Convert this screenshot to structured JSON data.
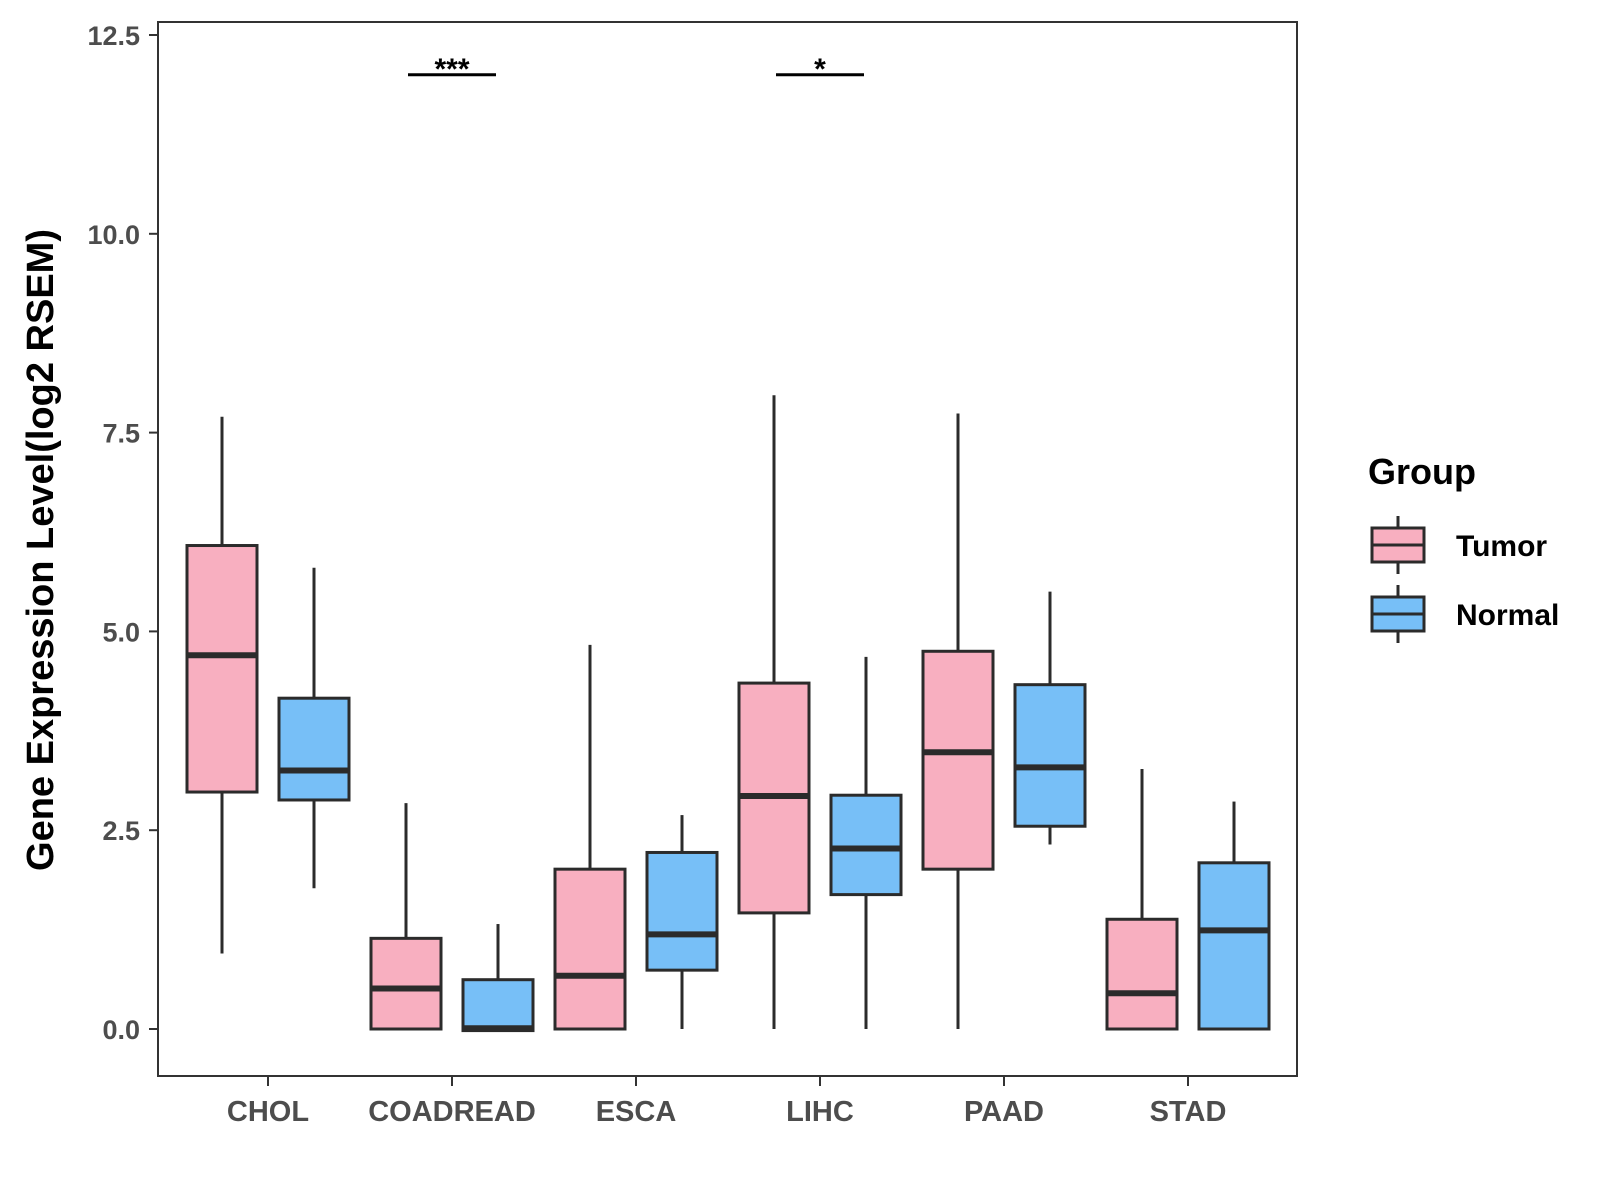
{
  "chart_data": {
    "type": "boxplot",
    "title": "",
    "xlabel": "",
    "ylabel": "Gene Expression Level(log2 RSEM)",
    "ylim": [
      -0.6,
      12.6
    ],
    "yticks": [
      "0.0",
      "2.5",
      "5.0",
      "7.5",
      "10.0",
      "12.5"
    ],
    "ytick_values": [
      0,
      2.5,
      5,
      7.5,
      10,
      12.5
    ],
    "grid": false,
    "legend": {
      "title": "Group",
      "position": "right",
      "entries": [
        {
          "name": "Tumor",
          "color": "#F8AFC0"
        },
        {
          "name": "Normal",
          "color": "#77BFF7"
        }
      ]
    },
    "categories": [
      "CHOL",
      "COADREAD",
      "ESCA",
      "LIHC",
      "PAAD",
      "STAD"
    ],
    "series": [
      {
        "name": "Tumor",
        "color": "#F8AFC0",
        "boxes": [
          {
            "whisker_low": 0.95,
            "q1": 2.98,
            "median": 4.7,
            "q3": 6.08,
            "whisker_high": 7.7
          },
          {
            "whisker_low": 0.0,
            "q1": 0.0,
            "median": 0.51,
            "q3": 1.14,
            "whisker_high": 2.84
          },
          {
            "whisker_low": 0.0,
            "q1": 0.0,
            "median": 0.67,
            "q3": 2.01,
            "whisker_high": 4.83
          },
          {
            "whisker_low": 0.0,
            "q1": 1.46,
            "median": 2.93,
            "q3": 4.35,
            "whisker_high": 7.97
          },
          {
            "whisker_low": 0.0,
            "q1": 2.01,
            "median": 3.48,
            "q3": 4.75,
            "whisker_high": 7.74
          },
          {
            "whisker_low": 0.0,
            "q1": 0.0,
            "median": 0.45,
            "q3": 1.38,
            "whisker_high": 3.27
          }
        ]
      },
      {
        "name": "Normal",
        "color": "#77BFF7",
        "boxes": [
          {
            "whisker_low": 1.77,
            "q1": 2.88,
            "median": 3.25,
            "q3": 4.16,
            "whisker_high": 5.8
          },
          {
            "whisker_low": -0.02,
            "q1": -0.02,
            "median": 0.01,
            "q3": 0.62,
            "whisker_high": 1.32
          },
          {
            "whisker_low": 0.0,
            "q1": 0.74,
            "median": 1.19,
            "q3": 2.22,
            "whisker_high": 2.69
          },
          {
            "whisker_low": 0.0,
            "q1": 1.69,
            "median": 2.27,
            "q3": 2.94,
            "whisker_high": 4.68
          },
          {
            "whisker_low": 2.32,
            "q1": 2.55,
            "median": 3.29,
            "q3": 4.33,
            "whisker_high": 5.5
          },
          {
            "whisker_low": 0.0,
            "q1": 0.0,
            "median": 1.24,
            "q3": 2.09,
            "whisker_high": 2.86
          }
        ]
      }
    ],
    "annotations": [
      {
        "category": "COADREAD",
        "label": "***",
        "y": 12.0
      },
      {
        "category": "LIHC",
        "label": "*",
        "y": 12.0
      }
    ]
  }
}
